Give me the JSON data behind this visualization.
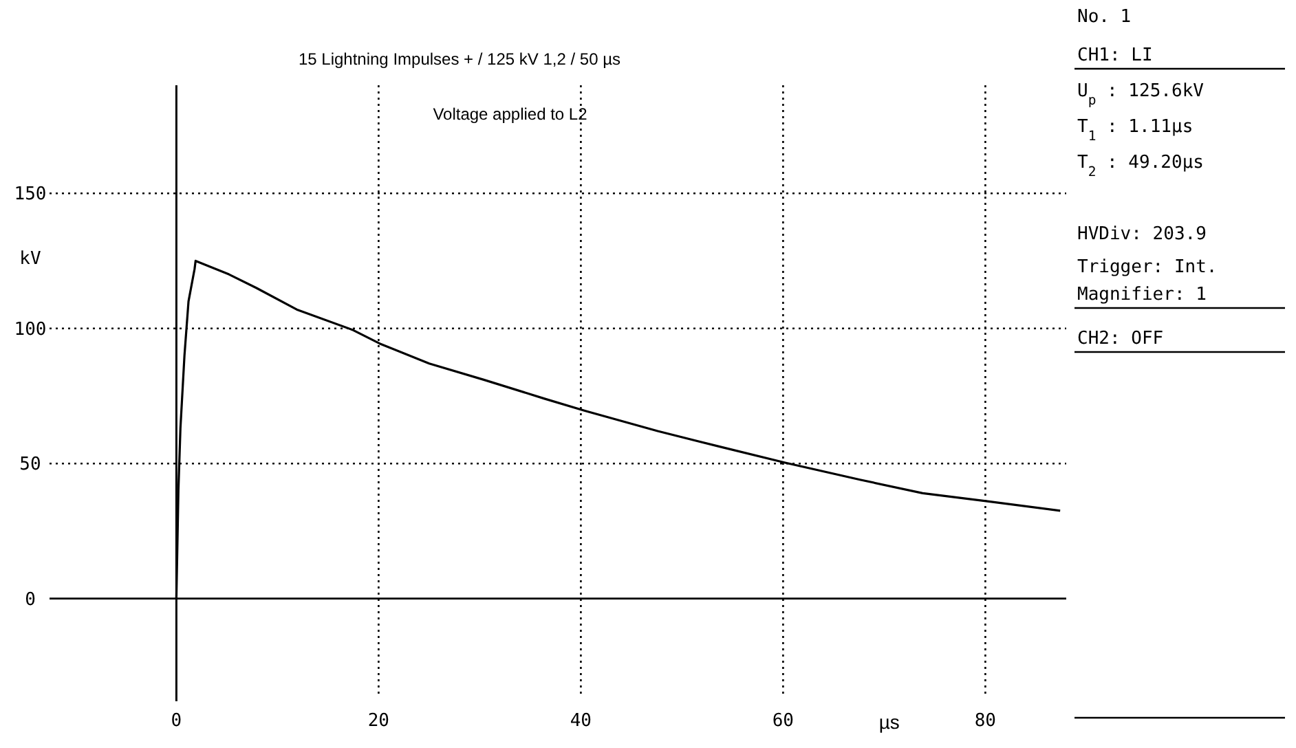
{
  "chart_data": {
    "type": "line",
    "title": "15 Lightning Impulses +  /  125 kV  1,2 / 50 µs",
    "subtitle": "Voltage applied to L2",
    "xlabel": "µs",
    "ylabel": "kV",
    "xlim": [
      -12,
      88
    ],
    "ylim": [
      -38,
      190
    ],
    "xticks": [
      0,
      20,
      40,
      60,
      80
    ],
    "yticks": [
      0,
      50,
      100,
      150
    ],
    "grid": true,
    "line_style": "solid",
    "marker": "none",
    "color": "#000000",
    "x": [
      0,
      0.2,
      0.4,
      0.8,
      1.2,
      1.8,
      1.9,
      5.2,
      7.9,
      11.9,
      17.4,
      20.1,
      25,
      30.4,
      36.4,
      40.4,
      47.6,
      54,
      60.2,
      67.6,
      73.8,
      80.2,
      87.4
    ],
    "values": [
      0,
      40,
      63,
      90,
      110,
      122,
      125,
      120,
      115,
      107,
      99.5,
      94.4,
      87,
      81,
      74,
      69.5,
      62,
      56,
      50.3,
      44,
      39,
      36,
      32.5
    ],
    "annotations": [
      "No.   1",
      "CH1: LI",
      "U$_{p}$ :  125.6kV",
      "T$_{1}$ :   1.11µs",
      "T$_{2}$ :  49.20µs",
      "HVDiv:  203.9",
      "Trigger: Int.",
      "Magnifier:  1",
      "CH2: OFF"
    ]
  }
}
